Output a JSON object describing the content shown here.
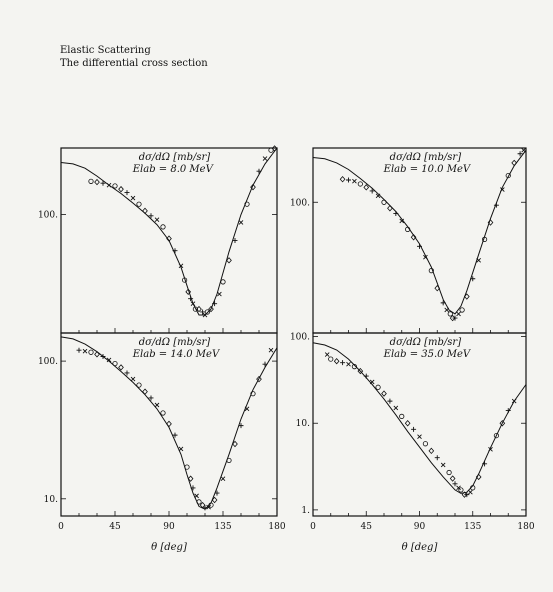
{
  "heading": {
    "line1": "Elastic Scattering",
    "line2": "The differential cross section"
  },
  "xlabel": "θ [deg]",
  "chart_data": [
    {
      "type": "scatter",
      "panel": "top-left",
      "label_quantity": "dσ/dΩ [mb/sr]",
      "label_energy": "Elab = 8.0 MeV",
      "xlim": [
        0,
        180
      ],
      "ylim": [
        15,
        290
      ],
      "yscale": "log",
      "xticks": [],
      "yticks": [
        100
      ],
      "ytick_labels": [
        "100."
      ],
      "curve": {
        "x": [
          0,
          10,
          20,
          30,
          40,
          50,
          60,
          70,
          80,
          90,
          100,
          105,
          110,
          115,
          120,
          125,
          130,
          140,
          150,
          160,
          170,
          180
        ],
        "y": [
          230,
          225,
          210,
          185,
          160,
          140,
          120,
          102,
          85,
          66,
          43,
          32,
          24,
          20,
          20,
          22,
          28,
          55,
          100,
          160,
          225,
          290
        ]
      },
      "points": {
        "x": [
          25,
          30,
          35,
          40,
          45,
          50,
          55,
          60,
          65,
          70,
          75,
          80,
          85,
          90,
          95,
          100,
          103,
          106,
          108,
          110,
          112,
          115,
          118,
          120,
          122,
          125,
          128,
          132,
          135,
          140,
          145,
          150,
          155,
          160,
          165,
          170,
          175,
          178
        ],
        "y": [
          170,
          168,
          165,
          160,
          158,
          150,
          142,
          130,
          118,
          106,
          98,
          92,
          82,
          68,
          56,
          44,
          35,
          29,
          26,
          24,
          22,
          22,
          21,
          20,
          21,
          22,
          24,
          28,
          34,
          48,
          66,
          88,
          118,
          155,
          200,
          245,
          280,
          288
        ]
      }
    },
    {
      "type": "scatter",
      "panel": "top-right",
      "label_quantity": "dσ/dΩ [mb/sr]",
      "label_energy": "Elab = 10.0 MeV",
      "xlim": [
        0,
        180
      ],
      "ylim": [
        10,
        260
      ],
      "yscale": "log",
      "xticks": [],
      "yticks": [
        100
      ],
      "ytick_labels": [
        "100."
      ],
      "curve": {
        "x": [
          0,
          10,
          20,
          30,
          40,
          50,
          60,
          70,
          80,
          90,
          100,
          105,
          110,
          115,
          120,
          125,
          130,
          140,
          150,
          160,
          170,
          180
        ],
        "y": [
          220,
          215,
          200,
          178,
          152,
          128,
          105,
          85,
          65,
          48,
          32,
          24,
          18,
          15,
          14,
          16,
          21,
          40,
          75,
          130,
          190,
          250
        ]
      },
      "points": {
        "x": [
          25,
          30,
          35,
          40,
          45,
          50,
          55,
          60,
          65,
          70,
          75,
          80,
          85,
          90,
          95,
          100,
          105,
          110,
          113,
          116,
          118,
          120,
          123,
          126,
          130,
          135,
          140,
          145,
          150,
          155,
          160,
          165,
          170,
          175,
          178
        ],
        "y": [
          150,
          148,
          145,
          138,
          130,
          122,
          112,
          100,
          90,
          82,
          72,
          62,
          54,
          46,
          38,
          30,
          22,
          17,
          15,
          14,
          13,
          13,
          14,
          15,
          19,
          26,
          36,
          52,
          70,
          95,
          125,
          160,
          200,
          235,
          250
        ]
      }
    },
    {
      "type": "scatter",
      "panel": "bottom-left",
      "label_quantity": "dσ/dΩ [mb/sr]",
      "label_energy": "Elab = 14.0 MeV",
      "xlim": [
        0,
        180
      ],
      "ylim": [
        7.5,
        160
      ],
      "yscale": "log",
      "xticks": [
        0,
        45,
        90,
        135,
        180
      ],
      "yticks": [
        100,
        10
      ],
      "ytick_labels": [
        "100.",
        "10."
      ],
      "curve": {
        "x": [
          0,
          10,
          20,
          30,
          40,
          50,
          60,
          70,
          80,
          90,
          100,
          105,
          110,
          115,
          120,
          125,
          130,
          140,
          150,
          160,
          170,
          180
        ],
        "y": [
          150,
          145,
          133,
          117,
          100,
          84,
          70,
          57,
          45,
          33,
          21,
          15,
          11,
          8.8,
          8.4,
          9.3,
          12,
          21,
          38,
          62,
          90,
          125
        ]
      },
      "points": {
        "x": [
          15,
          20,
          25,
          30,
          35,
          40,
          45,
          50,
          55,
          60,
          65,
          70,
          75,
          80,
          85,
          90,
          95,
          100,
          105,
          108,
          110,
          113,
          115,
          118,
          120,
          123,
          125,
          128,
          130,
          135,
          140,
          145,
          150,
          155,
          160,
          165,
          170,
          175
        ],
        "y": [
          120,
          118,
          116,
          112,
          108,
          102,
          96,
          90,
          82,
          74,
          67,
          60,
          54,
          48,
          42,
          35,
          29,
          23,
          17,
          14,
          12,
          10.5,
          9.5,
          9,
          8.6,
          8.7,
          9,
          9.8,
          11,
          14,
          19,
          25,
          34,
          45,
          58,
          74,
          95,
          120
        ]
      }
    },
    {
      "type": "scatter",
      "panel": "bottom-right",
      "label_quantity": "dσ/dΩ [mb/sr]",
      "label_energy": "Elab = 35.0 MeV",
      "xlim": [
        0,
        180
      ],
      "ylim": [
        0.85,
        110
      ],
      "yscale": "log",
      "xticks": [
        0,
        45,
        90,
        135,
        180
      ],
      "yticks": [
        100,
        10,
        1
      ],
      "ytick_labels": [
        "100.",
        "10.",
        "1."
      ],
      "curve": {
        "x": [
          0,
          10,
          20,
          30,
          40,
          50,
          60,
          70,
          80,
          90,
          100,
          110,
          120,
          125,
          130,
          135,
          140,
          150,
          160,
          170,
          180
        ],
        "y": [
          85,
          80,
          70,
          55,
          40,
          28,
          19,
          12.5,
          8,
          5.3,
          3.5,
          2.4,
          1.7,
          1.55,
          1.6,
          1.9,
          2.6,
          5.2,
          10,
          18,
          28
        ]
      },
      "points": {
        "x": [
          12,
          15,
          20,
          25,
          30,
          35,
          40,
          45,
          50,
          55,
          60,
          65,
          70,
          75,
          80,
          85,
          90,
          95,
          100,
          105,
          110,
          115,
          118,
          120,
          123,
          125,
          128,
          130,
          133,
          135,
          140,
          145,
          150,
          155,
          160,
          165,
          170
        ],
        "y": [
          62,
          55,
          52,
          50,
          48,
          45,
          40,
          35,
          30,
          26,
          22,
          18,
          15,
          12,
          10,
          8.5,
          7,
          5.8,
          4.8,
          4,
          3.3,
          2.7,
          2.3,
          2,
          1.8,
          1.7,
          1.5,
          1.5,
          1.6,
          1.8,
          2.4,
          3.4,
          5,
          7.2,
          10,
          14,
          18
        ]
      }
    }
  ]
}
